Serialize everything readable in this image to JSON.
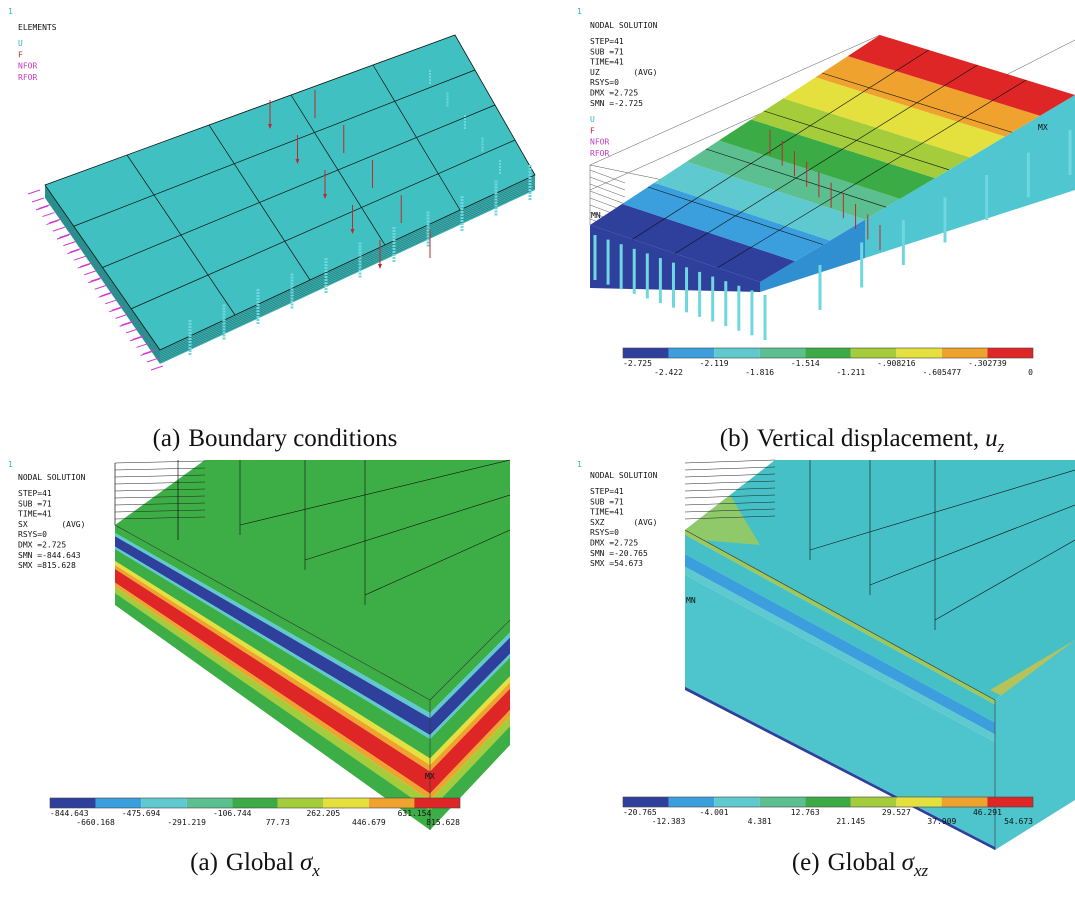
{
  "panels": [
    {
      "number": "1",
      "title": "ELEMENTS",
      "symbols": [
        "U",
        "F",
        "NFOR",
        "RFOR"
      ],
      "caption": {
        "tag": "(a)",
        "text": "Boundary conditions"
      }
    },
    {
      "number": "1",
      "title": "NODAL SOLUTION",
      "info": [
        "STEP=41",
        "SUB =71",
        "TIME=41",
        "UZ       (AVG)",
        "RSYS=0",
        "DMX =2.725",
        "SMN =-2.725"
      ],
      "symbols": [
        "U",
        "F",
        "NFOR",
        "RFOR"
      ],
      "markers": [
        "MN",
        "MX"
      ],
      "legend": {
        "top": [
          "-2.725",
          "-2.119",
          "-1.514",
          "-.908216",
          "-.302739"
        ],
        "bottom": [
          "-2.422",
          "-1.816",
          "-1.211",
          "-.605477",
          "0"
        ]
      },
      "caption": {
        "tag": "(b)",
        "text": "Vertical displacement,",
        "symbol": "u",
        "subscript": "z"
      }
    },
    {
      "number": "1",
      "title": "NODAL SOLUTION",
      "info": [
        "STEP=41",
        "SUB =71",
        "TIME=41",
        "SX       (AVG)",
        "RSYS=0",
        "DMX =2.725",
        "SMN =-844.643",
        "SMX =815.628"
      ],
      "markers": [
        "MX"
      ],
      "legend": {
        "top": [
          "-844.643",
          "-475.694",
          "-106.744",
          "262.205",
          "631.154"
        ],
        "bottom": [
          "-660.168",
          "-291.219",
          "77.73",
          "446.679",
          "815.628"
        ]
      },
      "caption": {
        "tag": "(a)",
        "text": "Global",
        "symbol": "σ",
        "subscript": "x"
      }
    },
    {
      "number": "1",
      "title": "NODAL SOLUTION",
      "info": [
        "STEP=41",
        "SUB =71",
        "TIME=41",
        "SXZ      (AVG)",
        "RSYS=0",
        "DMX =2.725",
        "SMN =-20.765",
        "SMX =54.673"
      ],
      "markers": [
        "MN"
      ],
      "legend": {
        "top": [
          "-20.765",
          "-4.001",
          "12.763",
          "29.527",
          "46.291"
        ],
        "bottom": [
          "-12.383",
          "4.381",
          "21.145",
          "37.909",
          "54.673"
        ]
      },
      "caption": {
        "tag": "(e)",
        "text": "Global",
        "symbol": "σ",
        "subscript": "xz"
      }
    }
  ]
}
